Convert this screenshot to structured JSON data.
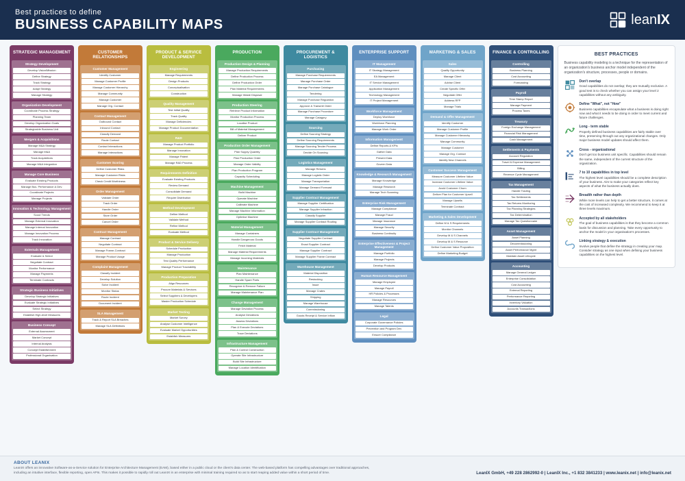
{
  "header": {
    "subtitle": "Best practices to define",
    "title": "BUSINESS CAPABILITY MAPS",
    "logo_text_light": "lean",
    "logo_text_bold": "IX"
  },
  "columns": [
    {
      "title": "STRATEGIC MANAGEMENT",
      "bg": "#7b3b66",
      "groups": [
        {
          "title": "Strategy Development",
          "items": [
            "Develop Vision/Mission",
            "Define Strategy",
            "Track Strategy",
            "Adapt Strategy",
            "Manage Strategy"
          ]
        },
        {
          "title": "Organization Development",
          "items": [
            "Coordinate Process Strategy",
            "Planning Team",
            "Develop Organization Goals",
            "Strategizable Business Unit"
          ]
        },
        {
          "title": "Mergers & Acquisitions",
          "items": [
            "Manage M&A Strategy",
            "Manage M&A",
            "Track Acquisitions",
            "Manage M&A Integration"
          ]
        },
        {
          "title": "Manage Core Business",
          "items": [
            "Evaluate Existing Products",
            "Manage Bus. Performance & Dev.",
            "Coordinate Projects",
            "Manage Projects"
          ]
        },
        {
          "title": "Innovation & Technology Management",
          "items": [
            "Scout Trends",
            "Manage External Innovation",
            "Manage Internal Innovation",
            "Manage Innovation Process",
            "Track Innovation"
          ]
        },
        {
          "title": "Externals Management",
          "items": [
            "Evaluate & Select",
            "Negotiate Contract",
            "Monitor Performance",
            "Manage Payments",
            "Terminate Contracts"
          ]
        },
        {
          "title": "Strategic Business Initiatives",
          "items": [
            "Develop Strategic Initiatives",
            "Evaluate Strategic Initiatives",
            "Select Strategy",
            "Establish High-level Measures"
          ]
        },
        {
          "title": "Business Concept",
          "items": [
            "External Assessment",
            "Market Concept",
            "Internal Analysis",
            "Concept Establishment",
            "Professional Organisation"
          ]
        }
      ]
    },
    {
      "title": "CUSTOMER RELATIONSHIPS",
      "bg": "#c27a39",
      "groups": [
        {
          "title": "Customer Management",
          "items": [
            "Identify Customer",
            "Manage Customer Profile",
            "Manage Customer Hierarchy",
            "Manage Community",
            "Manage Customer",
            "Manage Org. Contact"
          ]
        },
        {
          "title": "Contact Management",
          "items": [
            "Outbound Contact",
            "Inbound Contact",
            "Classify Demand",
            "Route Contact",
            "Contact Interactions",
            "Manage Interactions"
          ]
        },
        {
          "title": "Customer Scoring",
          "items": [
            "Define Customer Risks",
            "Manage Customer Risks",
            "Check Credit Worthiness"
          ]
        },
        {
          "title": "Order Management",
          "items": [
            "Validate Order",
            "Track Order",
            "Handle Order",
            "Store Order",
            "Cancel Order"
          ]
        },
        {
          "title": "Contract Management",
          "items": [
            "Manage Contract",
            "Negotiate Contract",
            "Manage Frame-Contract",
            "Manage Product Usage"
          ]
        },
        {
          "title": "Complaint Management",
          "items": [
            "Classify Incident",
            "Develop Solution",
            "Solve Incident",
            "Monitor Status",
            "Route Incident",
            "Document Incident"
          ]
        },
        {
          "title": "SLA Management",
          "items": [
            "Track & Report SLA Breaches",
            "Manage SLA Definitions"
          ]
        }
      ]
    },
    {
      "title": "PRODUCT & SERVICE DEVELOPMENT",
      "bg": "#b9bd3f",
      "groups": [
        {
          "title": "Engineering",
          "items": [
            "Manage Requirements",
            "Design Products",
            "Conceptualisation",
            "Construction"
          ]
        },
        {
          "title": "Quality Management",
          "items": [
            "Test Initial Quality",
            "Track Quality",
            "Manage Deficiencies",
            "Manage Product Documentation"
          ]
        },
        {
          "title": "R&D",
          "items": [
            "Manage Product Portfolio",
            "Manage Innovation",
            "Manage Patent",
            "Manage R&D Process"
          ]
        },
        {
          "title": "Requirements Definition",
          "items": [
            "Evaluate Existing Products",
            "Review Demand",
            "Consolidate Demand",
            "Require Distribution"
          ]
        },
        {
          "title": "Method Development",
          "items": [
            "Define Method",
            "Validate Method",
            "Refine Method",
            "Evaluate Method"
          ]
        },
        {
          "title": "Product & Service Delivery",
          "items": [
            "Schedule Production",
            "Manage Production",
            "Test Quality Performance",
            "Manage Product Traceability"
          ]
        },
        {
          "title": "Production Preparation",
          "items": [
            "Align Resources",
            "Procure Materials & Services",
            "Select Suppliers & Developers",
            "Master Production Schedule"
          ]
        },
        {
          "title": "Market Testing",
          "items": [
            "Market Survey",
            "Analyse Customer Intelligence",
            "Evaluate Market Opportunities",
            "Establish Measures"
          ]
        }
      ]
    },
    {
      "title": "PRODUCTION",
      "bg": "#4aa95e",
      "groups": [
        {
          "title": "Production Design & Planning",
          "items": [
            "Manage Production Requirements",
            "Define Production Process",
            "Define Production Order",
            "Plan Material Requirements",
            "Manage Waste Disposal"
          ]
        },
        {
          "title": "Production Steering",
          "items": [
            "Retrieve Product Information",
            "Monitor Production Process",
            "Localise Product",
            "Bill of Material Management",
            "Deliver Product"
          ]
        },
        {
          "title": "Production Order Management",
          "items": [
            "Plan Supply Quantity",
            "Plan Production Order",
            "Manage Order Validity",
            "Plan Production Program",
            "Capacity Scheduling"
          ]
        },
        {
          "title": "Machine Management",
          "items": [
            "Build Machine",
            "Operate Machine",
            "Calibrate Machine",
            "Manage Machine Information",
            "Optimise Machine"
          ]
        },
        {
          "title": "Material Management",
          "items": [
            "Manage Containers",
            "Handle Dangerous Goods",
            "Fetch Material",
            "Manage Material Requirements",
            "Manage Incoming Materials"
          ]
        },
        {
          "title": "Maintenance",
          "items": [
            "Plan Maintenance",
            "Handle Spare Parts",
            "Recognize & Remove Failure",
            "Manage Maintenance Plan"
          ]
        },
        {
          "title": "Change Management",
          "items": [
            "Manage Deviation Process",
            "Analyse Deviations",
            "Assess Deviations",
            "Plan & Execute Deviations",
            "Trace Deviations"
          ]
        },
        {
          "title": "Infrastructure Management",
          "items": [
            "Plan & Control Construction",
            "Operate Site Infrastructure",
            "Build Site Infrastructure",
            "Manage Location Identification"
          ]
        }
      ]
    },
    {
      "title": "PROCUREMENT & LOGISTICS",
      "bg": "#3f8aa0",
      "groups": [
        {
          "title": "Purchasing",
          "items": [
            "Manage Purchase Requirements",
            "Manage Purchase Order",
            "Manage Purchase Catalogue",
            "Tendering",
            "Manage Purchase Regulation",
            "Approve & Transmit Order",
            "Manage Purchase Procedure",
            "Manage Catagory"
          ]
        },
        {
          "title": "Sourcing",
          "items": [
            "Define Sourcing Strategy",
            "Define Sourcing Requirements",
            "Manage Sourcing Tender Process",
            "Decide On Sourcing"
          ]
        },
        {
          "title": "Logistics Management",
          "items": [
            "Manage Returns",
            "Manage Logistic Order",
            "Manage Transportation",
            "Manage Demand Forecast"
          ]
        },
        {
          "title": "Supplier Contract Management",
          "items": [
            "Manage Supplier Certification",
            "Manage Supplier Infraction",
            "Classify Supplier",
            "Manage Supplier Contract Routing"
          ]
        },
        {
          "title": "Supplier Contract Management",
          "items": [
            "Negotiate Supplier Contract",
            "Enact Supplier Contract",
            "Manage Supplier Contract",
            "Manage Supplier Frame Contract"
          ]
        },
        {
          "title": "Warehouse Management",
          "items": [
            "Material Disposition",
            "Restocking",
            "Issue",
            "Manage Crates",
            "Shipping",
            "Manage Warehouse",
            "Commissioning",
            "Goods Receipt & Service Inflow"
          ]
        }
      ]
    },
    {
      "title": "ENTERPRISE SUPPORT",
      "bg": "#5f8fbf",
      "groups": [
        {
          "title": "IT Management",
          "items": [
            "IT Strategy Management",
            "EA Management",
            "IT Service Management",
            "Application Management",
            "Technology Management",
            "IT Project Management"
          ]
        },
        {
          "title": "Workforce Management",
          "items": [
            "Deploy Workforce",
            "Workforce Planning",
            "Manage Work Order"
          ]
        },
        {
          "title": "Information Management",
          "items": [
            "Define Reports & KPIs",
            "Gather Data",
            "Present Data",
            "Govern Data"
          ]
        },
        {
          "title": "Knowledge & Research Management",
          "items": [
            "Manage Knowledge",
            "Manage Research",
            "Manage Tech Scanning"
          ]
        },
        {
          "title": "Enterprise Risk Management",
          "items": [
            "Manage Compliance",
            "Manage Fraud",
            "Manage Insurance",
            "Manage Security",
            "Business Continuity"
          ]
        },
        {
          "title": "Enterprise Effectiveness & Project Management",
          "items": [
            "Manage Portfolio",
            "Manage Projects",
            "Develop Products"
          ]
        },
        {
          "title": "Human Resource Management",
          "items": [
            "Manage Employee",
            "Manage Payroll",
            "HR Policies & Processes",
            "Manage Resources",
            "Manage Talents"
          ]
        },
        {
          "title": "Legal",
          "items": [
            "Corporate Governance Policies",
            "Prevention and Program Dev.",
            "Ensure Compliance"
          ]
        }
      ]
    },
    {
      "title": "MARKETING & SALES",
      "bg": "#6fa4c9",
      "groups": [
        {
          "title": "Sales",
          "items": [
            "Qualify Opportunity",
            "Manage Client",
            "Advise Client",
            "Create Specific Offer",
            "Negotiate Offer",
            "Address RFP",
            "Manage Trials"
          ]
        },
        {
          "title": "Demand & Offer Management",
          "items": [
            "Identify Customer",
            "Manage Customer Profile",
            "Manage Customer Hierarchy",
            "Manage Community",
            "Manage Customer",
            "Manage Org. Contact",
            "Identify New Channels"
          ]
        },
        {
          "title": "Customer Success Management",
          "items": [
            "Measure Customer Lifetime Value",
            "Increase Customer Lifetime Value",
            "Avoid Customer Churn",
            "Deliver Plan for Customer Upsell",
            "Manage Upsells",
            "Terminate Contract"
          ]
        },
        {
          "title": "Marketing & Sales Development",
          "items": [
            "Define M & S Requirements",
            "Monitor Channels",
            "Develop M & S Channels",
            "Develop M & S Resource",
            "Define Customer Value Proposition",
            "Define Marketing Budget"
          ]
        }
      ]
    },
    {
      "title": "FINANCE & CONTROLLING",
      "bg": "#2f4f78",
      "groups": [
        {
          "title": "Controlling",
          "items": [
            "Business Planning",
            "Cost Accounting",
            "Forecasting"
          ]
        },
        {
          "title": "Payroll",
          "items": [
            "Time Stamp Report",
            "Manage Payment",
            "Process Taxes"
          ]
        },
        {
          "title": "Treasury",
          "items": [
            "Foreign Exchange Management",
            "Financial Risk Management",
            "Cash Management"
          ]
        },
        {
          "title": "Settlements & Payments",
          "items": [
            "Account Regulation",
            "Travel & Expense Management",
            "Billing",
            "Revenue Cycle Management"
          ]
        },
        {
          "title": "Tax Management",
          "items": [
            "Handle Trading",
            "Tax Settlements",
            "Tax Returns Monitoring",
            "Tax Planning Strategies",
            "Tax Determination",
            "Manage Tax Questionnaire"
          ]
        },
        {
          "title": "Asset Management",
          "items": [
            "Asset Planning",
            "Decommissioning",
            "Asset Performance Mgmt",
            "Maintain Asset Lifecycle"
          ]
        },
        {
          "title": "Accounting",
          "items": [
            "Manage General Ledger",
            "Enterprise Consolidation",
            "Cost Accounting",
            "External Reporting",
            "Performance Reporting",
            "Inventory Valuation",
            "Accounts Transactions"
          ]
        }
      ]
    }
  ],
  "best_practices": {
    "head": "BEST PRACTICES",
    "intro": "Business capability modeling is a technique for the representation of an organization's business anchor model independent of the organization's structure, processes, people or domains.",
    "items": [
      {
        "title": "Don't overlap",
        "text": "Good capabilities do not overlap; they are mutually exclusive. A good test is to check whether you can assign your level 2 capabilities without any ambiguity.",
        "color": "#3f8aa0"
      },
      {
        "title": "Define \"What\", not \"How\"",
        "text": "Business capabilities encapsulate what a business is doing right now and what it needs to be doing in order to meet current and future challenges.",
        "color": "#c27a39"
      },
      {
        "title": "Long - term stable",
        "text": "Properly defined business capabilities are fairly stable over time, preserving through out any organizational changes. Only major business model updates should affect them.",
        "color": "#4aa95e"
      },
      {
        "title": "Cross - organizational",
        "text": "Don't get too business unit specific. Capabilities should remain the same, independent of the current structure of the organization.",
        "color": "#5f8fbf"
      },
      {
        "title": "7 to 10 capabilities in top level",
        "text": "The highest level capabilities should be a complete description of your business. Aim to make your categories reflect key aspects of what the business actually does.",
        "color": "#2f4f78"
      },
      {
        "title": "Breadth rather than depth",
        "text": "While more levels can help to get a better structure, it comes at the cost of increased complexity. We recommend to keep it at three levels maximum.",
        "color": "#7b3b66"
      },
      {
        "title": "Accepted by all stakeholders",
        "text": "The goal of business capabilities is that they become a common basis for discussion and planning. Take every opportunity to anchor the model in your organisation's processes.",
        "color": "#b9bd3f"
      },
      {
        "title": "Linking strategy & execution",
        "text": "Involve people that define the strategy in creating your map. Consider strategy as one input when defining your business capabilities on the highest level.",
        "color": "#6fa4c9"
      }
    ]
  },
  "footer": {
    "about_head": "ABOUT LEANIX",
    "about_text": "LeanIX offers an innovative Software-as-a-Service solution for Enterprise Architecture Management (EAM), based either in a public cloud or the client's data center. The web-based platform has compelling advantages over traditional approaches, including an intuitive interface, flexible reporting, open APIs. This makes it possible to rapidly roll out LeanIX in an enterprise with minimal training required so as to start reaping added value within a short period of time.",
    "contact": "LeanIX GmbH, +49 228 2862992-0 | LeanIX Inc., +1 832 3841233 | www.leanix.net | info@leanix.net"
  }
}
